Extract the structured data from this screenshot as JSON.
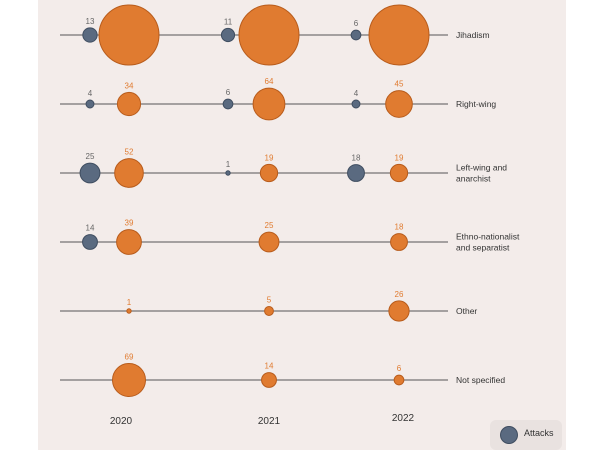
{
  "chart_data": {
    "type": "scatter",
    "years": [
      "2020",
      "2021",
      "2022"
    ],
    "categories": [
      {
        "label": [
          "Jihadism"
        ],
        "attacks": [
          13,
          11,
          6
        ],
        "arrests": [
          null,
          null,
          null
        ]
      },
      {
        "label": [
          "Right-wing"
        ],
        "attacks": [
          4,
          6,
          4
        ],
        "arrests": [
          34,
          64,
          45
        ]
      },
      {
        "label": [
          "Left-wing and",
          "anarchist"
        ],
        "attacks": [
          25,
          1,
          18
        ],
        "arrests": [
          52,
          19,
          19
        ]
      },
      {
        "label": [
          "Ethno-nationalist",
          "and separatist"
        ],
        "attacks": [
          14,
          null,
          null
        ],
        "arrests": [
          39,
          25,
          18
        ]
      },
      {
        "label": [
          "Other"
        ],
        "attacks": [
          null,
          null,
          null
        ],
        "arrests": [
          1,
          5,
          26
        ]
      },
      {
        "label": [
          "Not specified"
        ],
        "attacks": [
          null,
          null,
          null
        ],
        "arrests": [
          69,
          14,
          6
        ]
      }
    ],
    "legend": [
      {
        "name": "Attacks",
        "color": "#5a6a80"
      }
    ],
    "colors": {
      "attacks": "#5a6a80",
      "arrests": "#e07b30",
      "arrests_text": "#e07b30",
      "attacks_text": "#666666",
      "line": "#555555"
    }
  }
}
